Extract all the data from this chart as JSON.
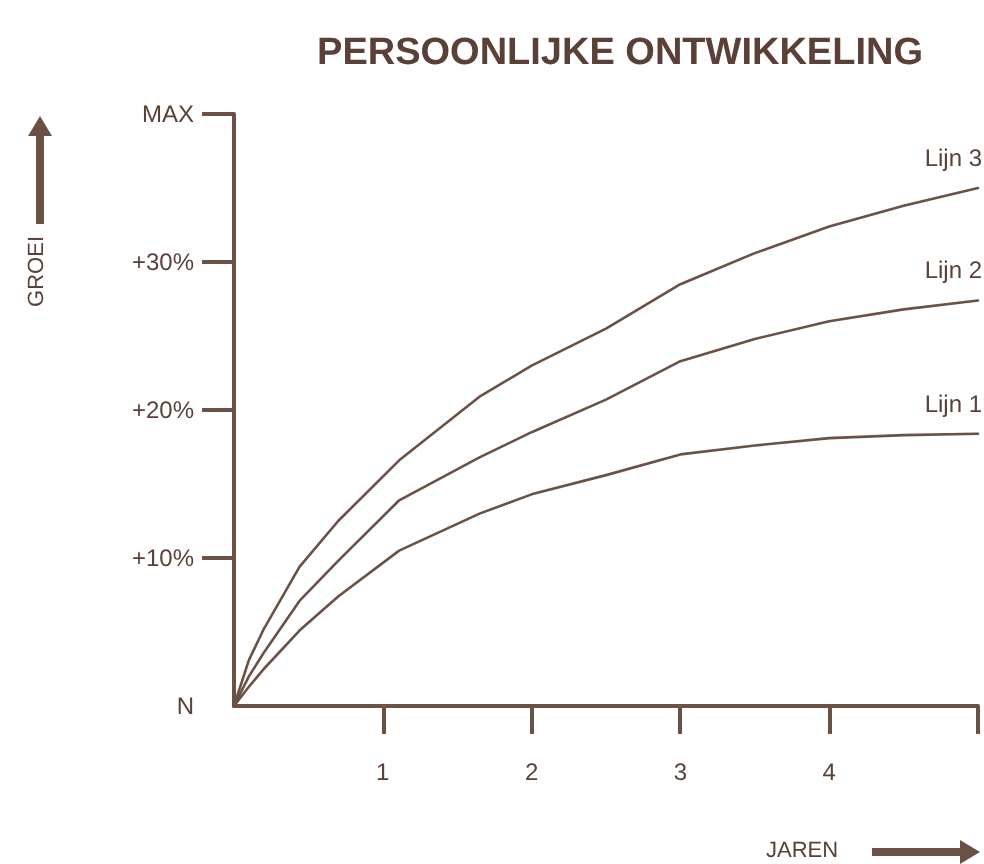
{
  "chart_data": {
    "type": "line",
    "title": "PERSOONLIJKE ONTWIKKELING",
    "xlabel": "JAREN",
    "ylabel": "GROEI",
    "x": [
      0,
      0.1,
      0.2,
      0.44,
      0.7,
      1.11,
      1.65,
      2,
      2.5,
      3,
      3.5,
      4,
      4.5,
      5
    ],
    "series": [
      {
        "name": "Lijn 1",
        "color": "#6b5044",
        "values": [
          0,
          1.3,
          2.5,
          5.1,
          7.4,
          10.5,
          13.0,
          14.3,
          15.6,
          17.0,
          17.6,
          18.1,
          18.3,
          18.4
        ]
      },
      {
        "name": "Lijn 2",
        "color": "#6b5044",
        "values": [
          0,
          2.0,
          3.6,
          7.1,
          9.8,
          13.9,
          16.8,
          18.5,
          20.7,
          23.3,
          24.8,
          26.0,
          26.8,
          27.4
        ]
      },
      {
        "name": "Lijn 3",
        "color": "#6b5044",
        "values": [
          0,
          3.1,
          5.2,
          9.4,
          12.5,
          16.6,
          20.9,
          23.0,
          25.5,
          28.5,
          30.6,
          32.4,
          33.8,
          35.0
        ]
      }
    ],
    "xlim": [
      0,
      5
    ],
    "xticks": [
      1,
      2,
      3,
      4,
      {
        "value": 5,
        "label": null
      }
    ],
    "ylim": [
      0,
      40
    ],
    "yticks": [
      {
        "value": 0,
        "label": "N"
      },
      {
        "value": 10,
        "label": "+10%"
      },
      {
        "value": 20,
        "label": "+20%"
      },
      {
        "value": 30,
        "label": "+30%"
      },
      {
        "value": 40,
        "label": "MAX"
      }
    ],
    "grid": false,
    "legend": false,
    "marker": "none",
    "line_style": "solid"
  }
}
